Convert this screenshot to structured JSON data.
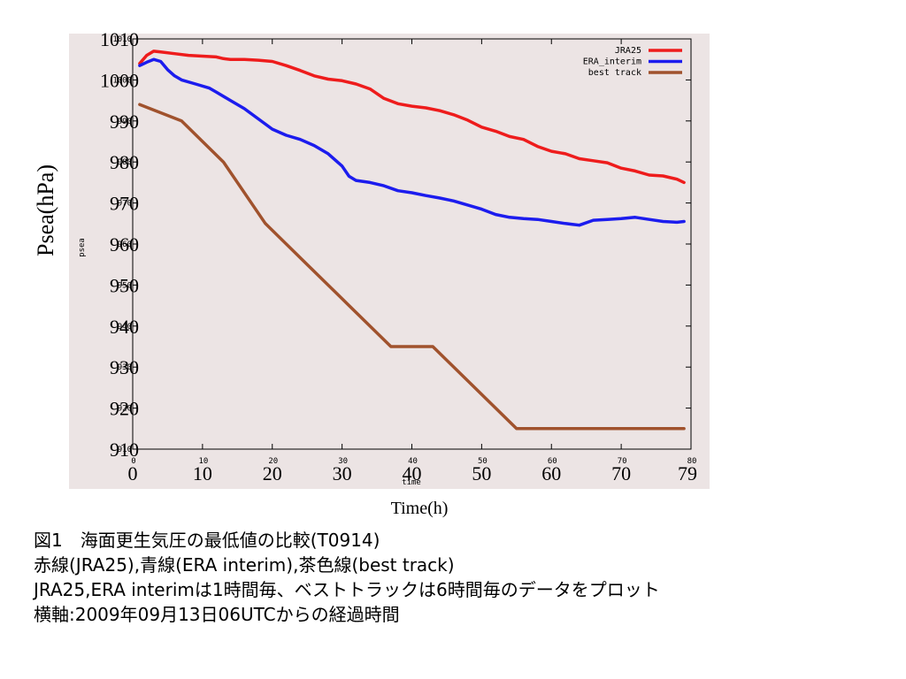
{
  "chart_data": {
    "type": "line",
    "ylabel": "Psea(hPa)",
    "xlabel": "Time(h)",
    "inner_ylabel": "psea",
    "inner_xlabel": "time",
    "xlim": [
      0,
      80
    ],
    "ylim": [
      910,
      1010
    ],
    "outer_yticks": [
      "1010",
      "1000",
      "990",
      "980",
      "970",
      "960",
      "950",
      "940",
      "930",
      "920",
      "910"
    ],
    "outer_xticks": [
      "0",
      "10",
      "20",
      "30",
      "40",
      "50",
      "60",
      "70",
      "79"
    ],
    "inner_yticks": [
      "1010",
      "1000",
      "990",
      "980",
      "970",
      "960",
      "950",
      "940",
      "930",
      "920",
      "910"
    ],
    "inner_xticks": [
      "0",
      "10",
      "20",
      "30",
      "40",
      "50",
      "60",
      "70",
      "80"
    ],
    "legend_position": "top-right",
    "series": [
      {
        "name": "JRA25",
        "color": "#ee1c1c",
        "x": [
          1,
          2,
          3,
          4,
          6,
          8,
          10,
          12,
          13,
          14,
          16,
          18,
          20,
          22,
          24,
          26,
          28,
          30,
          32,
          34,
          36,
          38,
          40,
          42,
          44,
          46,
          48,
          50,
          52,
          54,
          56,
          58,
          60,
          62,
          64,
          66,
          68,
          70,
          72,
          74,
          76,
          78,
          79
        ],
        "y": [
          1004,
          1006,
          1007,
          1006.8,
          1006.4,
          1006,
          1005.8,
          1005.6,
          1005.2,
          1005,
          1005,
          1004.8,
          1004.5,
          1003.5,
          1002.3,
          1001,
          1000.2,
          999.8,
          999,
          997.8,
          995.5,
          994.2,
          993.6,
          993.2,
          992.5,
          991.5,
          990.2,
          988.5,
          987.5,
          986.2,
          985.5,
          983.8,
          982.6,
          982,
          980.8,
          980.3,
          979.8,
          978.5,
          977.8,
          976.8,
          976.6,
          975.8,
          975
        ]
      },
      {
        "name": "ERA_interim",
        "color": "#1c1cee",
        "x": [
          1,
          2,
          3,
          4,
          5,
          6,
          7,
          9,
          11,
          12,
          14,
          16,
          18,
          20,
          22,
          24,
          26,
          28,
          30,
          31,
          32,
          34,
          36,
          38,
          40,
          42,
          44,
          46,
          48,
          50,
          52,
          54,
          56,
          58,
          60,
          62,
          63,
          64,
          66,
          68,
          70,
          72,
          74,
          76,
          78,
          79
        ],
        "y": [
          1003.5,
          1004.3,
          1005,
          1004.5,
          1002.5,
          1001,
          1000,
          999,
          998,
          997,
          995,
          993,
          990.5,
          988,
          986.5,
          985.5,
          984,
          982,
          979,
          976.5,
          975.5,
          975,
          974.2,
          973,
          972.5,
          971.8,
          971.2,
          970.5,
          969.5,
          968.5,
          967.2,
          966.5,
          966.2,
          966,
          965.5,
          965,
          964.8,
          964.6,
          965.8,
          966,
          966.2,
          966.5,
          966,
          965.5,
          965.3,
          965.5
        ]
      },
      {
        "name": "best track",
        "color": "#a0522d",
        "x": [
          1,
          7,
          13,
          19,
          25,
          31,
          37,
          43,
          49,
          55,
          61,
          67,
          73,
          79
        ],
        "y": [
          994,
          990,
          980,
          965,
          955,
          945,
          935,
          935,
          925,
          915,
          915,
          915,
          915,
          915
        ]
      }
    ]
  },
  "caption": {
    "line1": "図1　海面更生気圧の最低値の比較(T0914)",
    "line2": "赤線(JRA25),青線(ERA interim),茶色線(best track)",
    "line3": "JRA25,ERA interimは1時間毎、ベストトラックは6時間毎のデータをプロット",
    "line4": "横軸:2009年09月13日06UTCからの経過時間"
  }
}
